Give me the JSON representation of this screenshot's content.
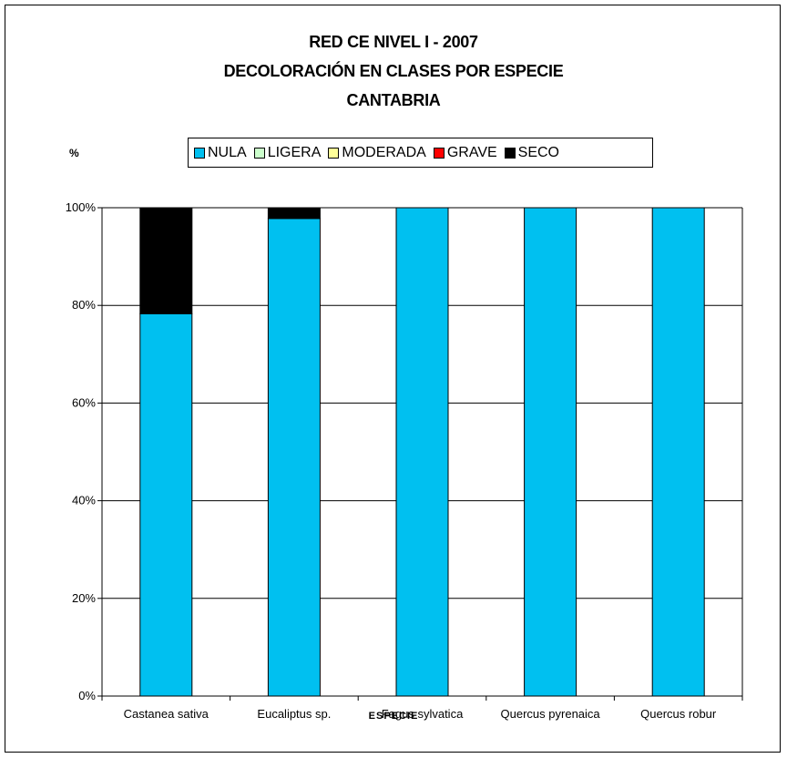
{
  "chart_data": {
    "type": "bar",
    "stacked": true,
    "title_lines": [
      "RED CE NIVEL I - 2007",
      "DECOLORACIÓN EN CLASES POR ESPECIE",
      "CANTABRIA"
    ],
    "unit_label": "%",
    "xlabel": "ESPECIE",
    "ylabel": "",
    "ylim": [
      0,
      100
    ],
    "yticks": [
      "0%",
      "20%",
      "40%",
      "60%",
      "80%",
      "100%"
    ],
    "grid": true,
    "legend_position": "top",
    "categories": [
      "Castanea sativa",
      "Eucaliptus sp.",
      "Fagus sylvatica",
      "Quercus pyrenaica",
      "Quercus robur"
    ],
    "series": [
      {
        "name": "NULA",
        "color": "#00C0F0",
        "values": [
          78.3,
          97.8,
          100,
          100,
          100
        ]
      },
      {
        "name": "LIGERA",
        "color": "#CCFFCC",
        "values": [
          0,
          0,
          0,
          0,
          0
        ]
      },
      {
        "name": "MODERADA",
        "color": "#FFFF99",
        "values": [
          0,
          0,
          0,
          0,
          0
        ]
      },
      {
        "name": "GRAVE",
        "color": "#FF0000",
        "values": [
          0,
          0,
          0,
          0,
          0
        ]
      },
      {
        "name": "SECO",
        "color": "#000000",
        "values": [
          21.7,
          2.2,
          0,
          0,
          0
        ]
      }
    ]
  }
}
